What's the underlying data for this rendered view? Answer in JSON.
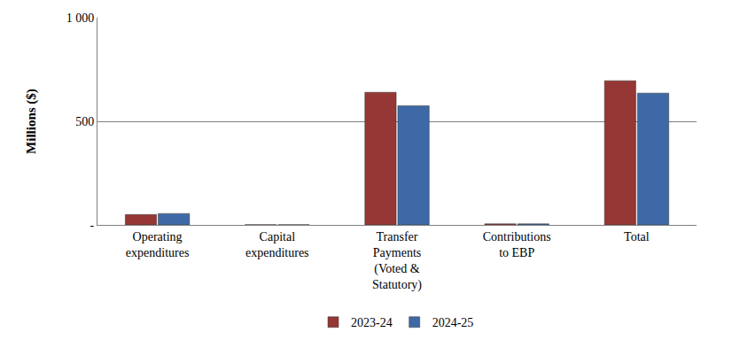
{
  "chart_data": {
    "type": "bar",
    "y_label": "Millions ($)",
    "categories": [
      "Operating expenditures",
      "Capital expenditures",
      "Transfer Payments (Voted & Statutory)",
      "Contributions to EBP",
      "Total"
    ],
    "series": [
      {
        "name": "2023-24",
        "color": "#953735",
        "values": [
          50,
          1,
          640,
          5,
          696
        ]
      },
      {
        "name": "2024-25",
        "color": "#3E69A6",
        "values": [
          55,
          1,
          575,
          5,
          636
        ]
      }
    ],
    "ylim": [
      0,
      1000
    ],
    "yticks": [
      {
        "value": 0,
        "label": "-"
      },
      500,
      {
        "value": 1000,
        "label": "1 000"
      }
    ],
    "grid": true,
    "legend": "bottom"
  }
}
